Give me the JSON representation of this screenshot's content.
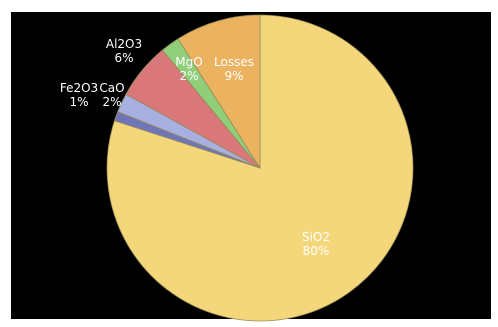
{
  "chart_data": {
    "type": "pie",
    "title": "",
    "slices": [
      {
        "label": "SiO2",
        "value": 80,
        "value_label": "80%",
        "color": "#f4d77a",
        "label_color": "#ffffff"
      },
      {
        "label": "Fe2O3",
        "value": 1,
        "value_label": "1%",
        "color": "#6f76b8",
        "label_color": "#ffffff"
      },
      {
        "label": "CaO",
        "value": 2,
        "value_label": "2%",
        "color": "#a7b0e0",
        "label_color": "#ffffff"
      },
      {
        "label": "Al2O3",
        "value": 6,
        "value_label": "6%",
        "color": "#d9777a",
        "label_color": "#ffffff"
      },
      {
        "label": "MgO",
        "value": 2,
        "value_label": "2%",
        "color": "#8fcf7a",
        "label_color": "#ffffff"
      },
      {
        "label": "Losses",
        "value": 9,
        "value_label": "9%",
        "color": "#ebb25f",
        "label_color": "#ffffff"
      }
    ],
    "start_angle_deg": 0,
    "direction": "clockwise",
    "background": "#000000"
  }
}
